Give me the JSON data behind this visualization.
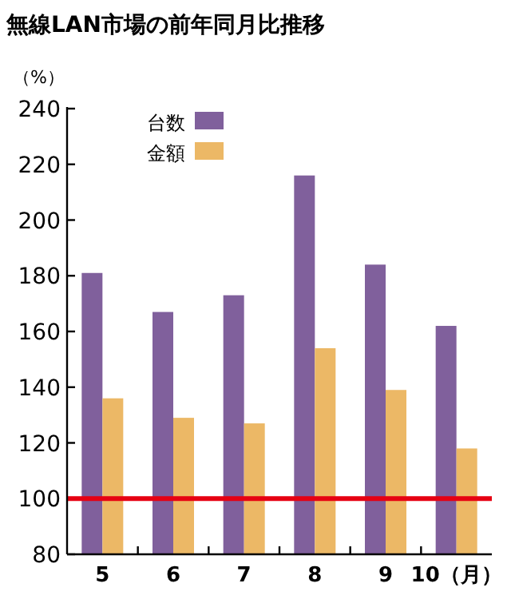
{
  "chart_data": {
    "type": "bar",
    "title": "無線LAN市場の前年同月比推移",
    "ylabel": "（%）",
    "categories": [
      "5",
      "6",
      "7",
      "8",
      "9",
      "10（月）"
    ],
    "series": [
      {
        "name": "台数",
        "color": "#80609c",
        "values": [
          181,
          167,
          173,
          216,
          184,
          162
        ]
      },
      {
        "name": "金額",
        "color": "#ecb866",
        "values": [
          136,
          129,
          127,
          154,
          139,
          118
        ]
      }
    ],
    "ylim": [
      80,
      240
    ],
    "yticks": [
      80,
      100,
      120,
      140,
      160,
      180,
      200,
      220,
      240
    ],
    "ref_lines": [
      {
        "axis": "y",
        "value": 100,
        "color": "#e60012"
      }
    ],
    "grid": false,
    "legend": "top left"
  }
}
